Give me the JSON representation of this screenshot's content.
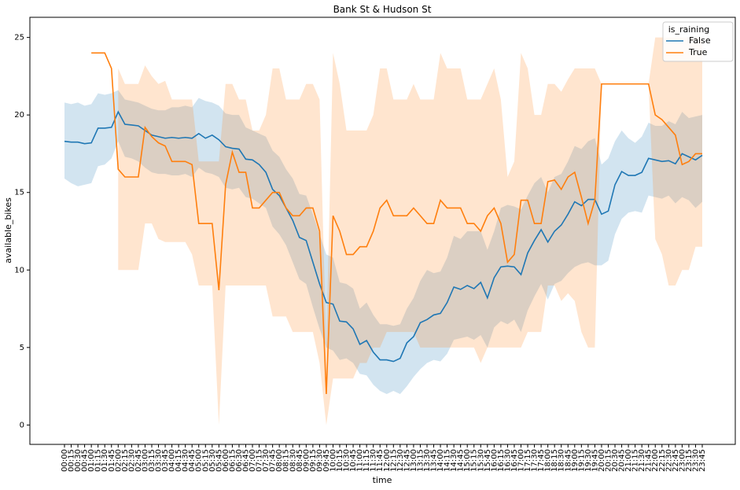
{
  "chart_data": {
    "type": "line",
    "title": "Bank St & Hudson St",
    "x_label": "time",
    "y_label": "available_bikes",
    "legend_title": "is_raining",
    "legend": "upper right",
    "categories": [
      "00:00",
      "00:15",
      "00:30",
      "00:45",
      "01:00",
      "01:15",
      "01:30",
      "01:45",
      "02:00",
      "02:15",
      "02:30",
      "02:45",
      "03:00",
      "03:15",
      "03:30",
      "03:45",
      "04:00",
      "04:15",
      "04:30",
      "04:45",
      "05:00",
      "05:15",
      "05:30",
      "05:45",
      "06:00",
      "06:15",
      "06:30",
      "06:45",
      "07:00",
      "07:15",
      "07:30",
      "07:45",
      "08:00",
      "08:15",
      "08:30",
      "08:45",
      "09:00",
      "09:15",
      "09:30",
      "09:45",
      "10:00",
      "10:15",
      "10:30",
      "10:45",
      "11:00",
      "11:15",
      "11:30",
      "11:45",
      "12:00",
      "12:15",
      "12:30",
      "12:45",
      "13:00",
      "13:15",
      "13:30",
      "13:45",
      "14:00",
      "14:15",
      "14:30",
      "14:45",
      "15:00",
      "15:15",
      "15:30",
      "15:45",
      "16:00",
      "16:15",
      "16:30",
      "16:45",
      "17:00",
      "17:15",
      "17:30",
      "17:45",
      "18:00",
      "18:15",
      "18:30",
      "18:45",
      "19:00",
      "19:15",
      "19:30",
      "19:45",
      "20:00",
      "20:15",
      "20:30",
      "20:45",
      "21:00",
      "21:15",
      "21:30",
      "21:45",
      "22:00",
      "22:15",
      "22:30",
      "22:45",
      "23:00",
      "23:15",
      "23:30",
      "23:45"
    ],
    "ylim": [
      -1.25,
      26.3
    ],
    "yticks": [
      0,
      5,
      10,
      15,
      20,
      25
    ],
    "series": [
      {
        "name": "False",
        "color": "#1f77b4",
        "values": [
          18.3,
          18.25,
          18.25,
          18.15,
          18.2,
          19.15,
          19.15,
          19.2,
          20.2,
          19.4,
          19.35,
          19.3,
          19.0,
          18.7,
          18.6,
          18.5,
          18.55,
          18.5,
          18.55,
          18.5,
          18.8,
          18.5,
          18.7,
          18.4,
          17.95,
          17.85,
          17.8,
          17.15,
          17.1,
          16.8,
          16.3,
          15.2,
          14.8,
          14.0,
          13.2,
          12.1,
          11.9,
          10.5,
          9.1,
          7.9,
          7.8,
          6.7,
          6.65,
          6.2,
          5.2,
          5.45,
          4.7,
          4.2,
          4.2,
          4.1,
          4.3,
          5.3,
          5.7,
          6.6,
          6.8,
          7.1,
          7.2,
          7.9,
          8.9,
          8.75,
          9.0,
          8.8,
          9.2,
          8.2,
          9.5,
          10.2,
          10.25,
          10.2,
          9.7,
          11.1,
          11.9,
          12.6,
          11.8,
          12.5,
          12.9,
          13.6,
          14.4,
          14.15,
          14.55,
          14.55,
          13.6,
          13.8,
          15.5,
          16.35,
          16.1,
          16.1,
          16.3,
          17.2,
          17.1,
          17.0,
          17.05,
          16.85,
          17.5,
          17.3,
          17.1,
          17.4
        ],
        "upper": [
          20.8,
          20.7,
          20.8,
          20.6,
          20.7,
          21.4,
          21.3,
          21.4,
          21.6,
          21.0,
          20.9,
          20.8,
          20.6,
          20.4,
          20.3,
          20.3,
          20.5,
          20.5,
          20.6,
          20.5,
          21.1,
          20.9,
          20.8,
          20.6,
          20.1,
          20.0,
          20.0,
          19.2,
          19.0,
          18.8,
          18.6,
          17.7,
          17.3,
          16.5,
          15.9,
          14.9,
          14.8,
          13.6,
          12.3,
          11.0,
          10.8,
          9.2,
          9.1,
          8.8,
          7.5,
          7.9,
          7.1,
          6.5,
          6.5,
          6.4,
          6.5,
          7.5,
          8.2,
          9.3,
          10.0,
          9.8,
          9.9,
          10.8,
          12.2,
          12.0,
          12.5,
          12.5,
          12.5,
          11.3,
          12.5,
          14.0,
          14.2,
          14.1,
          13.9,
          14.8,
          15.6,
          16.0,
          15.0,
          16.0,
          16.2,
          17.0,
          18.0,
          17.8,
          18.3,
          18.5,
          16.8,
          17.2,
          18.3,
          19.0,
          18.5,
          18.2,
          18.6,
          19.5,
          19.3,
          19.3,
          19.6,
          19.4,
          20.2,
          19.8,
          19.9,
          20.0
        ],
        "lower": [
          15.9,
          15.6,
          15.4,
          15.5,
          15.6,
          16.7,
          16.8,
          17.2,
          18.3,
          17.3,
          17.2,
          17.0,
          16.6,
          16.3,
          16.2,
          16.2,
          16.1,
          16.1,
          16.2,
          16.0,
          16.6,
          16.3,
          16.2,
          16.0,
          15.3,
          15.2,
          15.3,
          14.7,
          14.6,
          14.3,
          14.0,
          12.8,
          12.3,
          11.6,
          10.5,
          9.4,
          9.1,
          7.6,
          6.2,
          5.0,
          4.8,
          4.2,
          4.3,
          4.0,
          3.3,
          3.2,
          2.6,
          2.2,
          2.0,
          2.2,
          2.0,
          2.5,
          3.1,
          3.6,
          4.0,
          4.2,
          4.1,
          4.6,
          5.5,
          5.6,
          5.7,
          5.5,
          5.8,
          5.0,
          6.3,
          6.7,
          6.5,
          6.8,
          6.0,
          7.4,
          8.3,
          9.1,
          8.1,
          9.1,
          9.3,
          9.8,
          10.2,
          10.4,
          10.5,
          10.3,
          10.3,
          10.6,
          12.3,
          13.3,
          13.7,
          13.8,
          13.7,
          14.8,
          14.7,
          14.6,
          14.8,
          14.3,
          14.7,
          14.5,
          14.0,
          14.4
        ]
      },
      {
        "name": "True",
        "color": "#ff7f0e",
        "values": [
          null,
          null,
          null,
          null,
          24,
          24,
          24,
          23,
          16.5,
          16,
          16,
          16,
          19.2,
          18.6,
          18.2,
          18,
          17,
          17,
          17,
          16.8,
          13,
          13,
          13,
          8.7,
          15.5,
          17.6,
          16.3,
          16.3,
          14,
          14,
          14.5,
          15,
          15,
          14,
          13.5,
          13.5,
          14,
          14,
          12.5,
          2,
          13.5,
          12.5,
          11,
          11,
          11.5,
          11.5,
          12.5,
          14,
          14.5,
          13.5,
          13.5,
          13.5,
          14,
          13.5,
          13,
          13,
          14.5,
          14,
          14,
          14,
          13,
          13,
          12.5,
          13.5,
          14,
          13,
          10.5,
          11,
          14.5,
          14.5,
          13,
          13,
          15.7,
          15.8,
          15.2,
          16,
          16.3,
          14.7,
          13,
          14.5,
          22,
          22,
          22,
          22,
          22,
          22,
          22,
          22,
          20,
          19.7,
          19.2,
          18.7,
          16.8,
          17,
          17.5,
          17.5
        ],
        "upper": [
          null,
          null,
          null,
          null,
          null,
          null,
          null,
          null,
          23,
          22,
          22,
          22,
          23.2,
          22.5,
          22,
          22.2,
          21,
          21,
          21,
          21,
          17,
          17,
          17,
          17,
          22,
          22,
          21,
          21,
          19,
          19,
          20,
          23,
          23,
          21,
          21,
          21,
          22,
          22,
          21,
          5,
          24,
          22,
          19,
          19,
          19,
          19,
          20,
          23,
          23,
          21,
          21,
          21,
          22,
          21,
          21,
          21,
          24,
          23,
          23,
          23,
          21,
          21,
          21,
          22,
          23,
          21,
          16,
          17,
          24,
          23,
          20,
          20,
          22,
          22,
          21.5,
          22.3,
          23,
          23,
          23,
          23,
          22,
          22,
          22,
          22,
          22,
          22,
          22,
          22,
          25,
          25,
          25,
          25,
          25,
          25,
          25,
          25
        ],
        "lower": [
          null,
          null,
          null,
          null,
          null,
          null,
          null,
          null,
          10,
          10,
          10,
          10,
          13,
          13,
          12,
          11.8,
          11.8,
          11.8,
          11.8,
          11,
          9,
          9,
          9,
          0,
          9,
          9,
          9,
          9,
          9,
          9,
          9,
          7,
          7,
          7,
          6,
          6,
          6,
          6,
          4,
          0,
          3,
          3,
          3,
          3,
          4,
          4,
          5,
          5,
          6,
          6,
          6,
          6,
          6,
          5,
          5,
          5,
          5,
          5,
          5,
          5,
          5,
          5,
          4,
          5,
          5,
          5,
          5,
          5,
          5,
          6,
          6,
          6,
          9,
          9,
          8,
          8.5,
          8,
          6,
          5,
          5,
          22,
          22,
          22,
          22,
          22,
          22,
          22,
          22,
          12,
          11,
          9,
          9,
          10,
          10,
          11.5,
          11.5
        ]
      }
    ]
  }
}
